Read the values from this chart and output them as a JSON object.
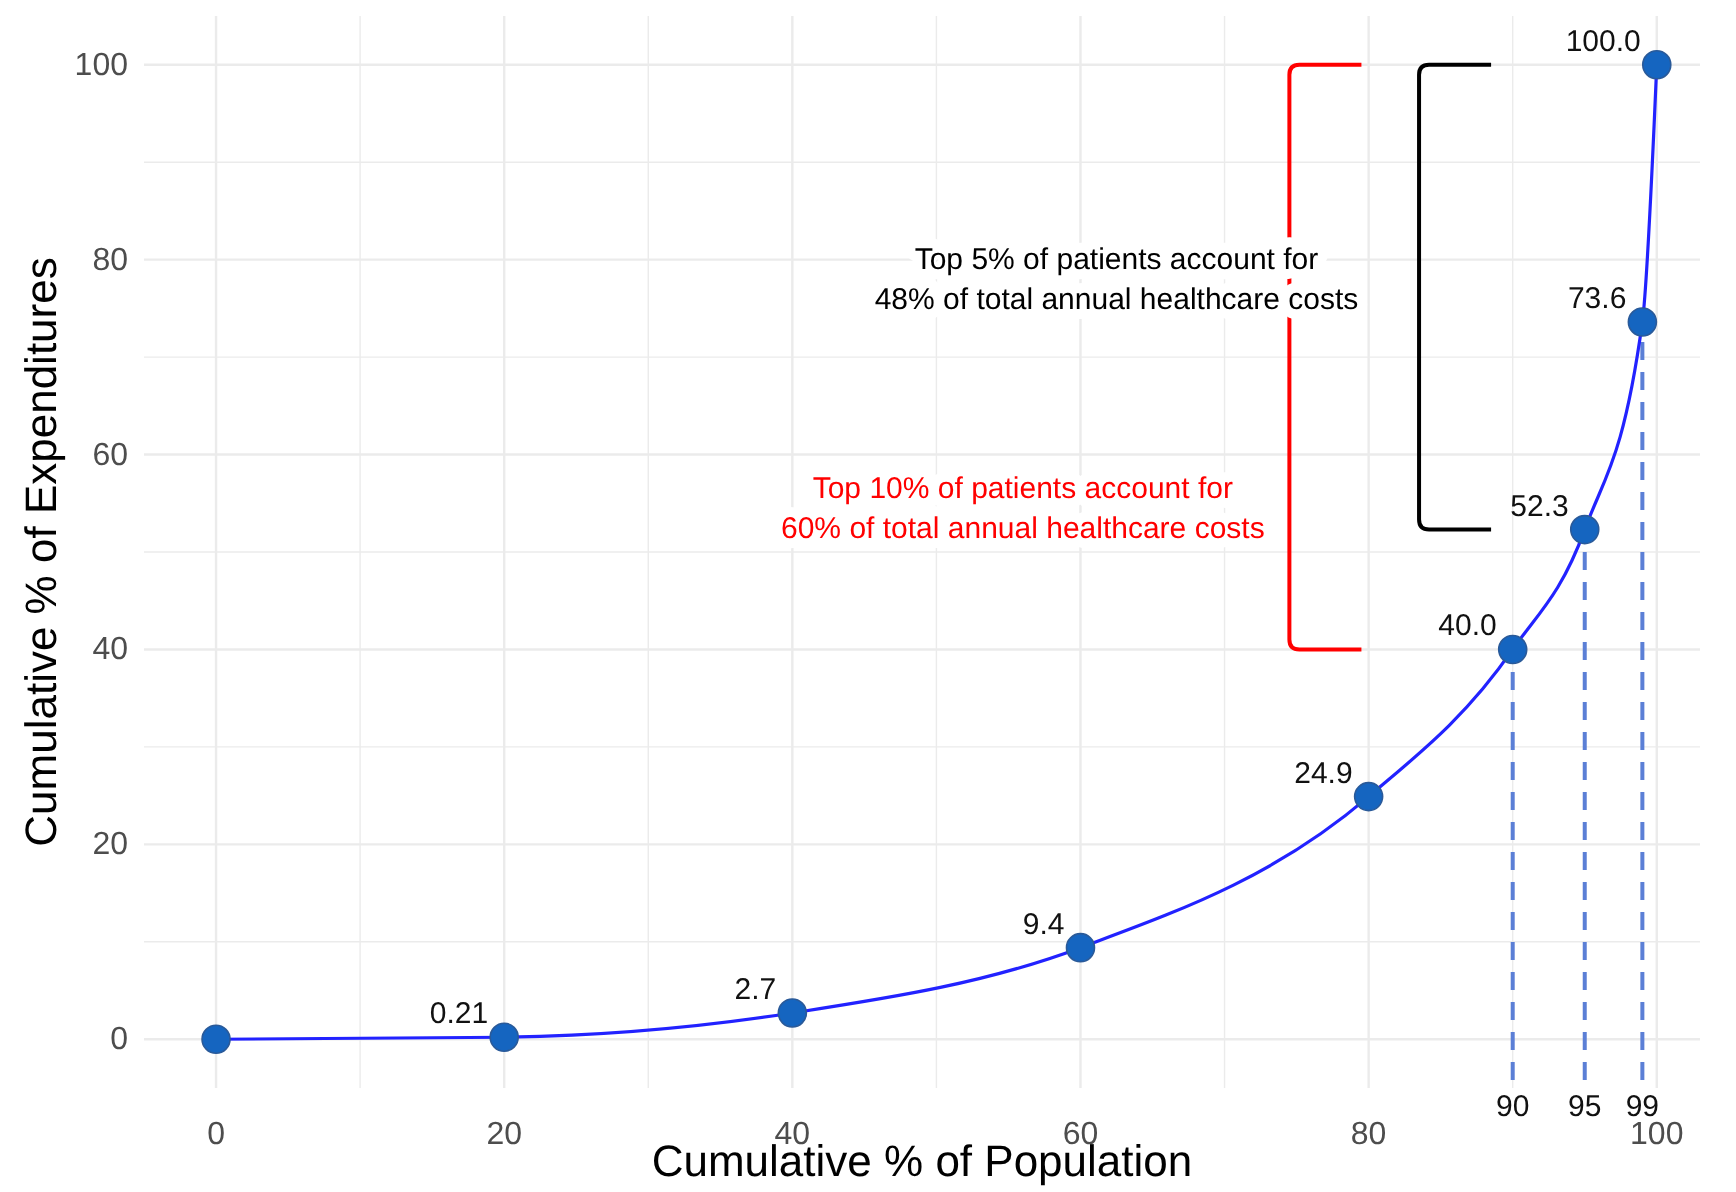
{
  "chart_data": {
    "type": "line",
    "xlabel": "Cumulative % of Population",
    "ylabel": "Cumulative % of Expenditures",
    "x": [
      0,
      20,
      40,
      60,
      80,
      90,
      95,
      99,
      100
    ],
    "series": [
      {
        "marker": "none",
        "color": "#2222ff",
        "values": [
          0,
          0.21,
          2.7,
          9.4,
          24.9,
          40.0,
          52.3,
          73.6,
          100.0
        ]
      },
      {
        "type": "scatter",
        "marker": "circle",
        "color": "#1565c0",
        "values": [
          0,
          0.21,
          2.7,
          9.4,
          24.9,
          40.0,
          52.3,
          73.6,
          100.0
        ],
        "value_labels": [
          null,
          "0.21",
          "2.7",
          "9.4",
          "24.9",
          "40.0",
          "52.3",
          "73.6",
          "100.0"
        ]
      }
    ],
    "xlim": [
      -5,
      103
    ],
    "ylim": [
      -5,
      105
    ],
    "xticks": [
      0,
      {
        "value": 10,
        "label": null
      },
      20,
      {
        "value": 30,
        "label": null
      },
      40,
      {
        "value": 50,
        "label": null
      },
      60,
      {
        "value": 70,
        "label": null
      },
      80,
      {
        "value": 90,
        "label": null
      },
      100
    ],
    "yticks": [
      0,
      {
        "value": 10,
        "label": null
      },
      20,
      {
        "value": 30,
        "label": null
      },
      40,
      {
        "value": 50,
        "label": null
      },
      60,
      {
        "value": 70,
        "label": null
      },
      80,
      {
        "value": 90,
        "label": null
      },
      100
    ],
    "grid": true,
    "ref_lines": [
      {
        "axis": "x",
        "value": 90,
        "label": "90",
        "color": "#5b7fd6",
        "line_style": "dashed"
      },
      {
        "axis": "x",
        "value": 95,
        "label": "95",
        "color": "#5b7fd6",
        "line_style": "dashed"
      },
      {
        "axis": "x",
        "value": 99,
        "label": "99",
        "color": "#5b7fd6",
        "line_style": "dashed"
      }
    ],
    "annotations": [
      "Top 5% of patients account for\n48% of total annual healthcare costs",
      "Top 10% of patients account for\n60% of total annual healthcare costs"
    ]
  }
}
